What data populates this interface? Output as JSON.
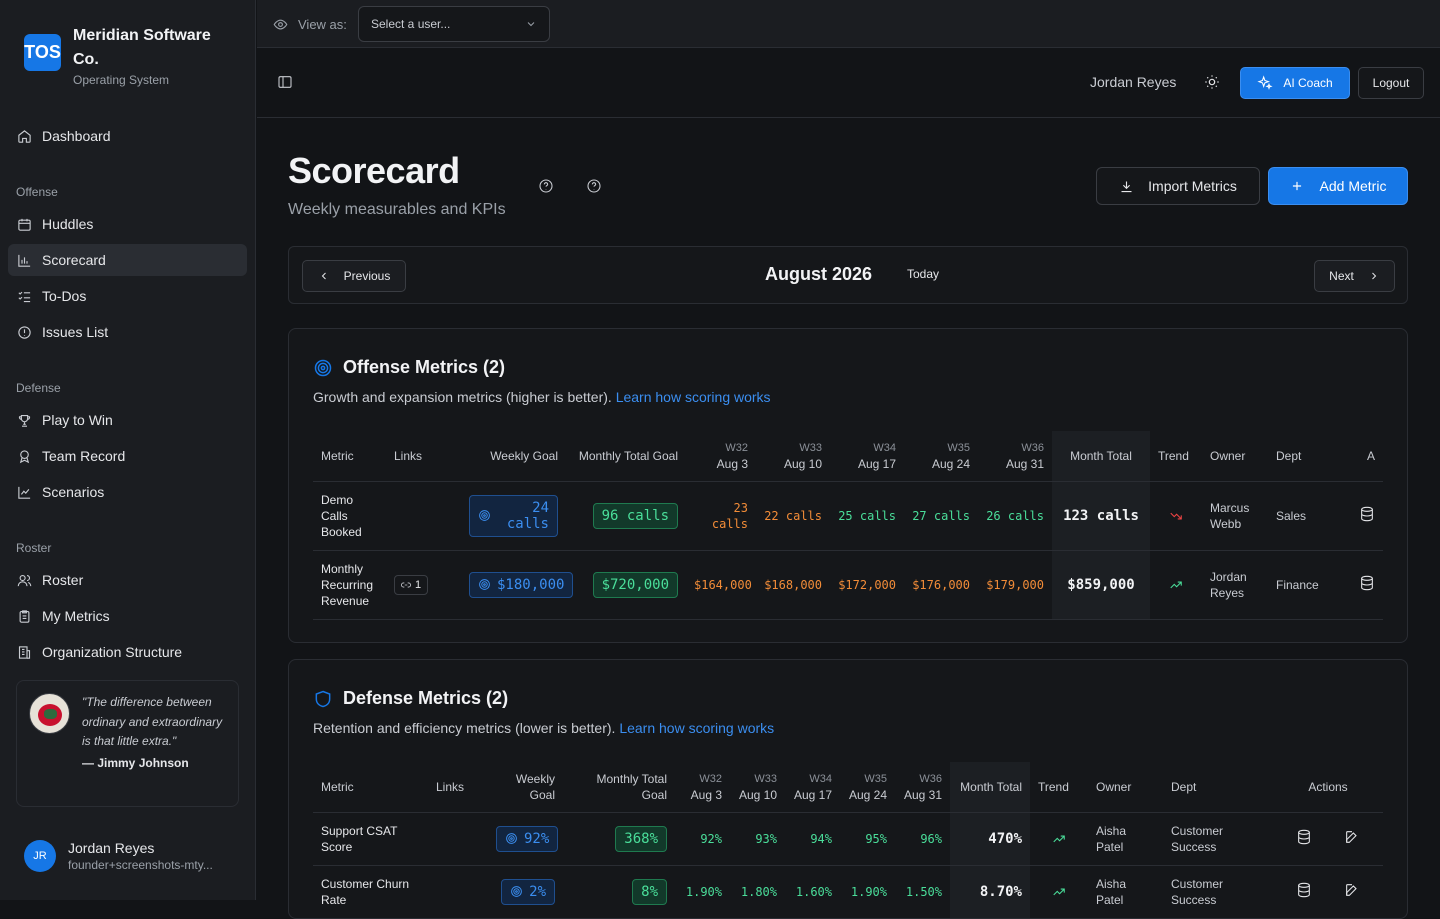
{
  "brand": {
    "logo": "TOS",
    "name": "Meridian Software Co.",
    "subtitle": "Operating System"
  },
  "sidebar": {
    "dashboard": "Dashboard",
    "sections": {
      "offense": "Offense",
      "defense": "Defense",
      "roster": "Roster"
    },
    "items": {
      "huddles": "Huddles",
      "scorecard": "Scorecard",
      "todos": "To-Dos",
      "issues": "Issues List",
      "play_to_win": "Play to Win",
      "team_record": "Team Record",
      "scenarios": "Scenarios",
      "roster": "Roster",
      "my_metrics": "My Metrics",
      "org_structure": "Organization Structure"
    },
    "quote": {
      "text": "\"The difference between ordinary and extraordinary is that little extra.\"",
      "author": "— Jimmy Johnson"
    },
    "user": {
      "initials": "JR",
      "name": "Jordan Reyes",
      "email": "founder+screenshots-mty..."
    }
  },
  "topbar": {
    "view_as_label": "View as:",
    "user_select_placeholder": "Select a user...",
    "username": "Jordan Reyes",
    "ai_coach": "AI Coach",
    "logout": "Logout"
  },
  "page": {
    "title": "Scorecard",
    "subtitle": "Weekly measurables and KPIs",
    "import_label": "Import Metrics",
    "add_label": "Add Metric"
  },
  "period": {
    "previous": "Previous",
    "label": "August 2026",
    "today": "Today",
    "next": "Next"
  },
  "offense": {
    "title": "Offense Metrics (2)",
    "desc": "Growth and expansion metrics (higher is better).",
    "learn_link": "Learn how scoring works",
    "headers": {
      "metric": "Metric",
      "links": "Links",
      "weekly_goal": "Weekly Goal",
      "monthly_goal": "Monthly Total Goal",
      "w1": "W32",
      "d1": "Aug 3",
      "w2": "W33",
      "d2": "Aug 10",
      "w3": "W34",
      "d3": "Aug 17",
      "w4": "W35",
      "d4": "Aug 24",
      "w5": "W36",
      "d5": "Aug 31",
      "month_total": "Month Total",
      "trend": "Trend",
      "owner": "Owner",
      "dept": "Dept",
      "actions": "A"
    },
    "rows": [
      {
        "metric": "Demo Calls Booked",
        "links": "",
        "weekly_goal": "24 calls",
        "monthly_goal": "96 calls",
        "w1": "23 calls",
        "w2": "22 calls",
        "w3": "25 calls",
        "w4": "27 calls",
        "w5": "26 calls",
        "month_total": "123 calls",
        "owner": "Marcus Webb",
        "dept": "Sales"
      },
      {
        "metric": "Monthly Recurring Revenue",
        "links": "1",
        "weekly_goal": "$180,000",
        "monthly_goal": "$720,000",
        "w1": "$164,000",
        "w2": "$168,000",
        "w3": "$172,000",
        "w4": "$176,000",
        "w5": "$179,000",
        "month_total": "$859,000",
        "owner": "Jordan Reyes",
        "dept": "Finance"
      }
    ]
  },
  "defense": {
    "title": "Defense Metrics (2)",
    "desc": "Retention and efficiency metrics (lower is better).",
    "learn_link": "Learn how scoring works",
    "headers": {
      "metric": "Metric",
      "links": "Links",
      "weekly_goal": "Weekly Goal",
      "monthly_goal": "Monthly Total Goal",
      "w1": "W32",
      "d1": "Aug 3",
      "w2": "W33",
      "d2": "Aug 10",
      "w3": "W34",
      "d3": "Aug 17",
      "w4": "W35",
      "d4": "Aug 24",
      "w5": "W36",
      "d5": "Aug 31",
      "month_total": "Month Total",
      "trend": "Trend",
      "owner": "Owner",
      "dept": "Dept",
      "actions": "Actions"
    },
    "rows": [
      {
        "metric": "Support CSAT Score",
        "weekly_goal": "92%",
        "monthly_goal": "368%",
        "w1": "92%",
        "w2": "93%",
        "w3": "94%",
        "w4": "95%",
        "w5": "96%",
        "month_total": "470%",
        "owner": "Aisha Patel",
        "dept": "Customer Success"
      },
      {
        "metric": "Customer Churn Rate",
        "weekly_goal": "2%",
        "monthly_goal": "8%",
        "w1": "1.90%",
        "w2": "1.80%",
        "w3": "1.60%",
        "w4": "1.90%",
        "w5": "1.50%",
        "month_total": "8.70%",
        "owner": "Aisha Patel",
        "dept": "Customer Success"
      }
    ]
  },
  "colors": {
    "accent": "#1677e6",
    "good": "#4ade9a",
    "warn": "#f28c38",
    "bad": "#ef4444"
  }
}
